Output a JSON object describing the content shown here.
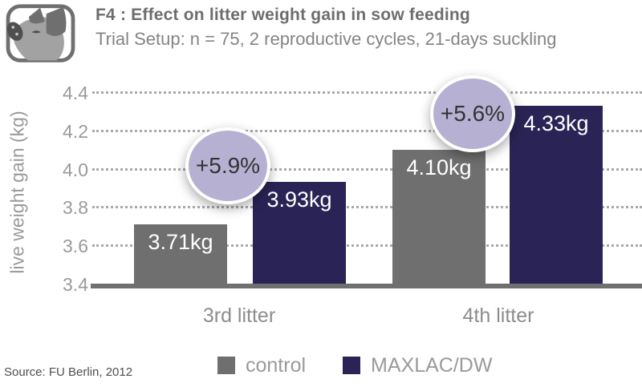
{
  "header": {
    "title": "F4 : Effect on litter weight gain in sow feeding",
    "subtitle": "Trial Setup: n = 75, 2 reproductive cycles, 21-days suckling",
    "icon": "pig-icon"
  },
  "chart_data": {
    "type": "bar",
    "categories": [
      "3rd litter",
      "4th litter"
    ],
    "series": [
      {
        "name": "control",
        "color": "#6f6f6f",
        "values": [
          3.71,
          4.1
        ],
        "labels": [
          "3.71kg",
          "4.10kg"
        ]
      },
      {
        "name": "MAXLAC/DW",
        "color": "#2a2456",
        "values": [
          3.93,
          4.33
        ],
        "labels": [
          "3.93kg",
          "4.33kg"
        ]
      }
    ],
    "annotations": [
      {
        "text": "+5.9%",
        "fill": "#b6b0d2",
        "between_group": 0
      },
      {
        "text": "+5.6%",
        "fill": "#b6b0d2",
        "between_group": 1
      }
    ],
    "title": "",
    "xlabel": "",
    "ylabel": "live weight gain (kg)",
    "ylim": [
      3.4,
      4.4
    ],
    "yticks": [
      3.4,
      3.6,
      3.8,
      4.0,
      4.2,
      4.4
    ],
    "grid": "horizontal-dotted",
    "legend_position": "bottom-center"
  },
  "colors": {
    "control_bar": "#6f6f6f",
    "maxlac_bar": "#2a2456",
    "bubble_fill": "#b6b0d2",
    "gridline": "#a9a9a9",
    "baseline": "#6f6f6f",
    "axis_text": "#9a9a9a",
    "bar_value_text": "#ffffff",
    "title_text": "#6d6d6d"
  },
  "source": "Source: FU Berlin, 2012"
}
